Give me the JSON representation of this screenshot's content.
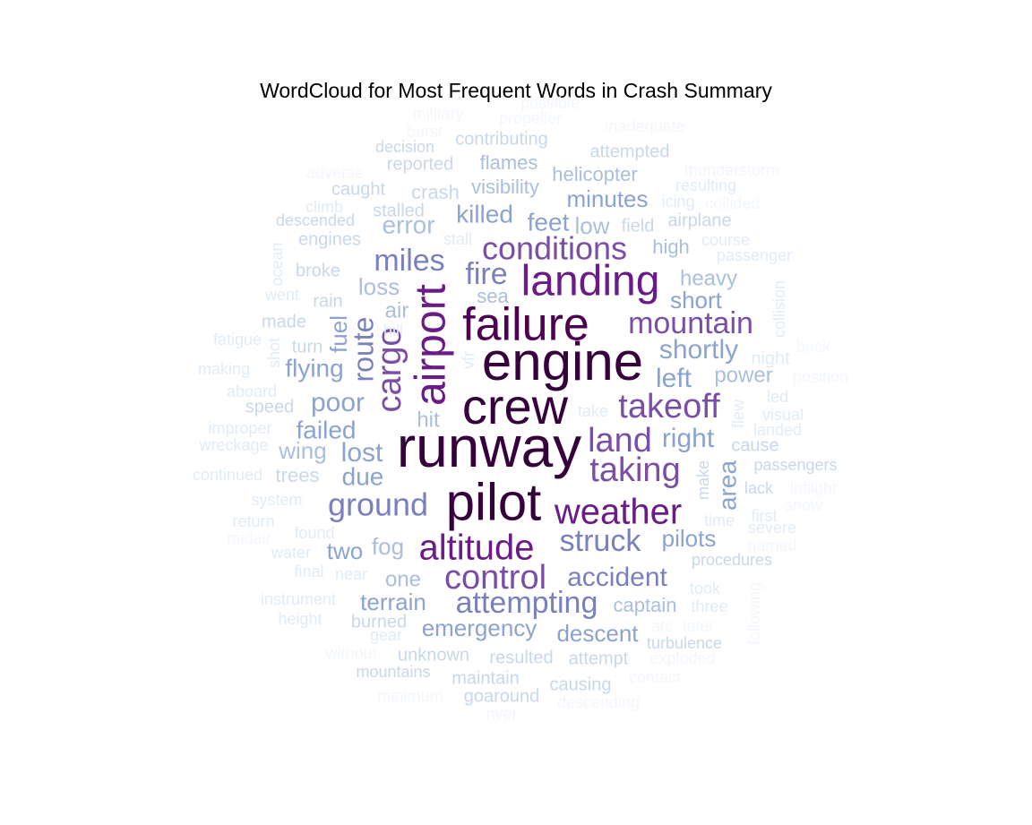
{
  "chart_data": {
    "type": "wordcloud",
    "title": "WordCloud for Most Frequent Words in Crash Summary",
    "colormap": "light-blue to dark-purple by frequency",
    "palette": [
      "#f3f7fb",
      "#e2ecf5",
      "#c8d8ea",
      "#a9bfdd",
      "#8ba3cf",
      "#7a80bb",
      "#7a4ea6",
      "#6a1b87",
      "#4d0050",
      "#35003c"
    ],
    "words": [
      {
        "text": "runway",
        "weight": 1.0
      },
      {
        "text": "engine",
        "weight": 0.96
      },
      {
        "text": "pilot",
        "weight": 0.93
      },
      {
        "text": "crew",
        "weight": 0.92
      },
      {
        "text": "failure",
        "weight": 0.82
      },
      {
        "text": "landing",
        "weight": 0.76
      },
      {
        "text": "airport",
        "weight": 0.7
      },
      {
        "text": "altitude",
        "weight": 0.7
      },
      {
        "text": "weather",
        "weight": 0.66
      },
      {
        "text": "taking",
        "weight": 0.62
      },
      {
        "text": "takeoff",
        "weight": 0.6
      },
      {
        "text": "control",
        "weight": 0.59
      },
      {
        "text": "conditions",
        "weight": 0.56
      },
      {
        "text": "mountain",
        "weight": 0.55
      },
      {
        "text": "land",
        "weight": 0.55
      },
      {
        "text": "cargo",
        "weight": 0.55
      },
      {
        "text": "ground",
        "weight": 0.54
      },
      {
        "text": "attempting",
        "weight": 0.53
      },
      {
        "text": "struck",
        "weight": 0.52
      },
      {
        "text": "miles",
        "weight": 0.5
      },
      {
        "text": "fire",
        "weight": 0.49
      },
      {
        "text": "route",
        "weight": 0.49
      },
      {
        "text": "accident",
        "weight": 0.47
      },
      {
        "text": "shortly",
        "weight": 0.45
      },
      {
        "text": "lost",
        "weight": 0.45
      },
      {
        "text": "right",
        "weight": 0.43
      },
      {
        "text": "left",
        "weight": 0.43
      },
      {
        "text": "killed",
        "weight": 0.43
      },
      {
        "text": "poor",
        "weight": 0.43
      },
      {
        "text": "due",
        "weight": 0.42
      },
      {
        "text": "feet",
        "weight": 0.42
      },
      {
        "text": "emergency",
        "weight": 0.41
      },
      {
        "text": "area",
        "weight": 0.41
      },
      {
        "text": "flying",
        "weight": 0.4
      },
      {
        "text": "pilots",
        "weight": 0.4
      },
      {
        "text": "descent",
        "weight": 0.39
      },
      {
        "text": "terrain",
        "weight": 0.39
      },
      {
        "text": "failed",
        "weight": 0.39
      },
      {
        "text": "short",
        "weight": 0.38
      },
      {
        "text": "minutes",
        "weight": 0.38
      },
      {
        "text": "two",
        "weight": 0.38
      },
      {
        "text": "fuel",
        "weight": 0.38
      },
      {
        "text": "low",
        "weight": 0.37
      },
      {
        "text": "error",
        "weight": 0.37
      },
      {
        "text": "fog",
        "weight": 0.36
      },
      {
        "text": "heavy",
        "weight": 0.36
      },
      {
        "text": "power",
        "weight": 0.36
      },
      {
        "text": "one",
        "weight": 0.35
      },
      {
        "text": "loss",
        "weight": 0.35
      },
      {
        "text": "wing",
        "weight": 0.35
      },
      {
        "text": "air",
        "weight": 0.34
      },
      {
        "text": "captain",
        "weight": 0.33
      },
      {
        "text": "visibility",
        "weight": 0.33
      },
      {
        "text": "high",
        "weight": 0.32
      },
      {
        "text": "hit",
        "weight": 0.32
      },
      {
        "text": "sea",
        "weight": 0.31
      },
      {
        "text": "flames",
        "weight": 0.3
      },
      {
        "text": "helicopter",
        "weight": 0.3
      },
      {
        "text": "attempted",
        "weight": 0.29
      },
      {
        "text": "contributing",
        "weight": 0.29
      },
      {
        "text": "crash",
        "weight": 0.29
      },
      {
        "text": "unknown",
        "weight": 0.28
      },
      {
        "text": "resulted",
        "weight": 0.28
      },
      {
        "text": "attempt",
        "weight": 0.28
      },
      {
        "text": "trees",
        "weight": 0.28
      },
      {
        "text": "turbulence",
        "weight": 0.27
      },
      {
        "text": "procedures",
        "weight": 0.27
      },
      {
        "text": "stalled",
        "weight": 0.27
      },
      {
        "text": "reported",
        "weight": 0.27
      },
      {
        "text": "caught",
        "weight": 0.27
      },
      {
        "text": "broke",
        "weight": 0.27
      },
      {
        "text": "engines",
        "weight": 0.26
      },
      {
        "text": "airplane",
        "weight": 0.26
      },
      {
        "text": "field",
        "weight": 0.25
      },
      {
        "text": "burned",
        "weight": 0.25
      },
      {
        "text": "maintain",
        "weight": 0.25
      },
      {
        "text": "causing",
        "weight": 0.25
      },
      {
        "text": "goaround",
        "weight": 0.25
      },
      {
        "text": "mountains",
        "weight": 0.24
      },
      {
        "text": "decision",
        "weight": 0.24
      },
      {
        "text": "descended",
        "weight": 0.24
      },
      {
        "text": "make",
        "weight": 0.24
      },
      {
        "text": "rain",
        "weight": 0.24
      },
      {
        "text": "made",
        "weight": 0.24
      },
      {
        "text": "turn",
        "weight": 0.24
      },
      {
        "text": "speed",
        "weight": 0.24
      },
      {
        "text": "cause",
        "weight": 0.24
      },
      {
        "text": "passengers",
        "weight": 0.24
      },
      {
        "text": "lack",
        "weight": 0.24
      },
      {
        "text": "night",
        "weight": 0.23
      },
      {
        "text": "visual",
        "weight": 0.23
      },
      {
        "text": "time",
        "weight": 0.23
      },
      {
        "text": "first",
        "weight": 0.23
      },
      {
        "text": "severe",
        "weight": 0.22
      },
      {
        "text": "took",
        "weight": 0.22
      },
      {
        "text": "three",
        "weight": 0.22
      },
      {
        "text": "icing",
        "weight": 0.22
      },
      {
        "text": "resulting",
        "weight": 0.22
      },
      {
        "text": "course",
        "weight": 0.22
      },
      {
        "text": "passenger",
        "weight": 0.22
      },
      {
        "text": "led",
        "weight": 0.22
      },
      {
        "text": "landed",
        "weight": 0.22
      },
      {
        "text": "flew",
        "weight": 0.22
      },
      {
        "text": "collision",
        "weight": 0.22
      },
      {
        "text": "climb",
        "weight": 0.21
      },
      {
        "text": "went",
        "weight": 0.21
      },
      {
        "text": "fatigue",
        "weight": 0.21
      },
      {
        "text": "shot",
        "weight": 0.21
      },
      {
        "text": "making",
        "weight": 0.21
      },
      {
        "text": "aboard",
        "weight": 0.21
      },
      {
        "text": "improper",
        "weight": 0.21
      },
      {
        "text": "wreckage",
        "weight": 0.21
      },
      {
        "text": "continued",
        "weight": 0.21
      },
      {
        "text": "system",
        "weight": 0.21
      },
      {
        "text": "return",
        "weight": 0.21
      },
      {
        "text": "found",
        "weight": 0.21
      },
      {
        "text": "water",
        "weight": 0.21
      },
      {
        "text": "final",
        "weight": 0.21
      },
      {
        "text": "near",
        "weight": 0.21
      },
      {
        "text": "instrument",
        "weight": 0.21
      },
      {
        "text": "height",
        "weight": 0.2
      },
      {
        "text": "gear",
        "weight": 0.2
      },
      {
        "text": "stall",
        "weight": 0.2
      },
      {
        "text": "hill",
        "weight": 0.2
      },
      {
        "text": "vfr",
        "weight": 0.2
      },
      {
        "text": "take",
        "weight": 0.2
      },
      {
        "text": "ocean",
        "weight": 0.2
      },
      {
        "text": "military",
        "weight": 0.19
      },
      {
        "text": "burst",
        "weight": 0.19
      },
      {
        "text": "propeller",
        "weight": 0.19
      },
      {
        "text": "possible",
        "weight": 0.19
      },
      {
        "text": "inadequate",
        "weight": 0.19
      },
      {
        "text": "adverse",
        "weight": 0.19
      },
      {
        "text": "thunderstorm",
        "weight": 0.19
      },
      {
        "text": "collided",
        "weight": 0.19
      },
      {
        "text": "back",
        "weight": 0.19
      },
      {
        "text": "position",
        "weight": 0.19
      },
      {
        "text": "inflight",
        "weight": 0.19
      },
      {
        "text": "snow",
        "weight": 0.19
      },
      {
        "text": "named",
        "weight": 0.19
      },
      {
        "text": "following",
        "weight": 0.19
      },
      {
        "text": "atc",
        "weight": 0.19
      },
      {
        "text": "later",
        "weight": 0.19
      },
      {
        "text": "exploded",
        "weight": 0.19
      },
      {
        "text": "contact",
        "weight": 0.19
      },
      {
        "text": "descending",
        "weight": 0.19
      },
      {
        "text": "river",
        "weight": 0.19
      },
      {
        "text": "minimum",
        "weight": 0.19
      },
      {
        "text": "without",
        "weight": 0.19
      },
      {
        "text": "midair",
        "weight": 0.19
      }
    ]
  }
}
